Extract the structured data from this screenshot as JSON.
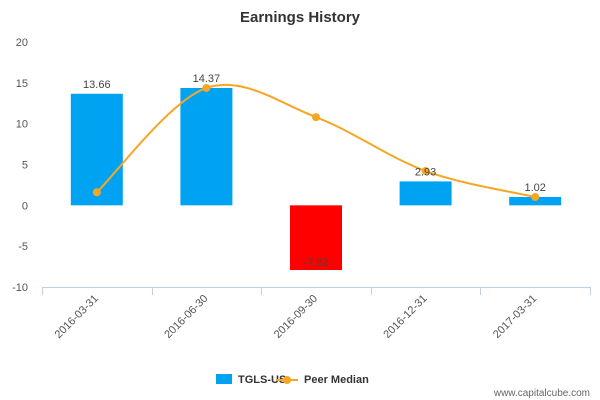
{
  "chart_data": {
    "type": "bar",
    "title": "Earnings History",
    "categories": [
      "2016-03-31",
      "2016-06-30",
      "2016-09-30",
      "2016-12-31",
      "2017-03-31"
    ],
    "series": [
      {
        "name": "TGLS-US",
        "kind": "bar",
        "values": [
          13.66,
          14.37,
          -7.92,
          2.93,
          1.02
        ],
        "labels": [
          "13.66",
          "14.37",
          "-7.92",
          "2.93",
          "1.02"
        ],
        "color": "#00a2f2",
        "negative_color": "#ff0000"
      },
      {
        "name": "Peer Median",
        "kind": "line",
        "values": [
          1.6,
          14.37,
          10.8,
          4.2,
          1.02
        ],
        "color": "#f5a623"
      }
    ],
    "ylim": [
      -10,
      20
    ],
    "yticks": [
      "-10",
      "-5",
      "0",
      "5",
      "10",
      "15",
      "20"
    ],
    "xlabel": "",
    "ylabel": "",
    "legend_position": "bottom-center",
    "grid": false
  },
  "watermark": "www.capitalcube.com"
}
